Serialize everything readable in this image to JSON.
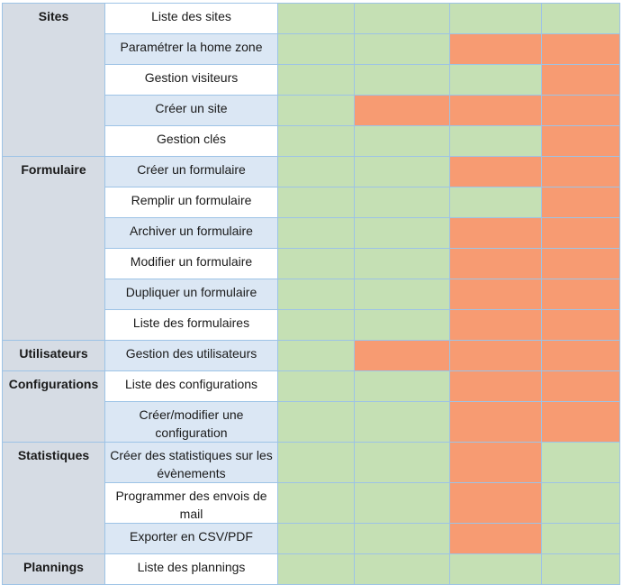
{
  "colors": {
    "allowed": "#c5e0b4",
    "denied": "#f79b72",
    "category_bg": "#d6dce4",
    "feature_alt_bg": "#dbe7f4",
    "border": "#9dc3e6"
  },
  "groups": [
    {
      "category": "Sites",
      "rows": [
        {
          "feature": "Liste des sites",
          "cells": [
            "g",
            "g",
            "g",
            "g"
          ]
        },
        {
          "feature": "Paramétrer la home zone",
          "cells": [
            "g",
            "g",
            "o",
            "o"
          ]
        },
        {
          "feature": "Gestion visiteurs",
          "cells": [
            "g",
            "g",
            "g",
            "o"
          ]
        },
        {
          "feature": "Créer un site",
          "cells": [
            "g",
            "o",
            "o",
            "o"
          ]
        },
        {
          "feature": "Gestion clés",
          "cells": [
            "g",
            "g",
            "g",
            "o"
          ]
        }
      ]
    },
    {
      "category": "Formulaire",
      "rows": [
        {
          "feature": "Créer un formulaire",
          "cells": [
            "g",
            "g",
            "o",
            "o"
          ]
        },
        {
          "feature": "Remplir un formulaire",
          "cells": [
            "g",
            "g",
            "g",
            "o"
          ]
        },
        {
          "feature": "Archiver un formulaire",
          "cells": [
            "g",
            "g",
            "o",
            "o"
          ]
        },
        {
          "feature": "Modifier un formulaire",
          "cells": [
            "g",
            "g",
            "o",
            "o"
          ]
        },
        {
          "feature": "Dupliquer un formulaire",
          "cells": [
            "g",
            "g",
            "o",
            "o"
          ]
        },
        {
          "feature": "Liste des formulaires",
          "cells": [
            "g",
            "g",
            "o",
            "o"
          ]
        }
      ]
    },
    {
      "category": "Utilisateurs",
      "rows": [
        {
          "feature": "Gestion des utilisateurs",
          "cells": [
            "g",
            "o",
            "o",
            "o"
          ]
        }
      ]
    },
    {
      "category": "Configurations",
      "rows": [
        {
          "feature": "Liste des configurations",
          "cells": [
            "g",
            "g",
            "o",
            "o"
          ]
        },
        {
          "feature": "Créer/modifier une configuration",
          "cells": [
            "g",
            "g",
            "o",
            "o"
          ]
        }
      ]
    },
    {
      "category": "Statistiques",
      "rows": [
        {
          "feature": "Créer des statistiques sur les évènements",
          "cells": [
            "g",
            "g",
            "o",
            "g"
          ]
        },
        {
          "feature": "Programmer des envois de mail",
          "cells": [
            "g",
            "g",
            "o",
            "g"
          ]
        },
        {
          "feature": "Exporter en CSV/PDF",
          "cells": [
            "g",
            "g",
            "o",
            "g"
          ]
        }
      ]
    },
    {
      "category": "Plannings",
      "rows": [
        {
          "feature": "Liste des plannings",
          "cells": [
            "g",
            "g",
            "g",
            "g"
          ]
        }
      ]
    }
  ]
}
